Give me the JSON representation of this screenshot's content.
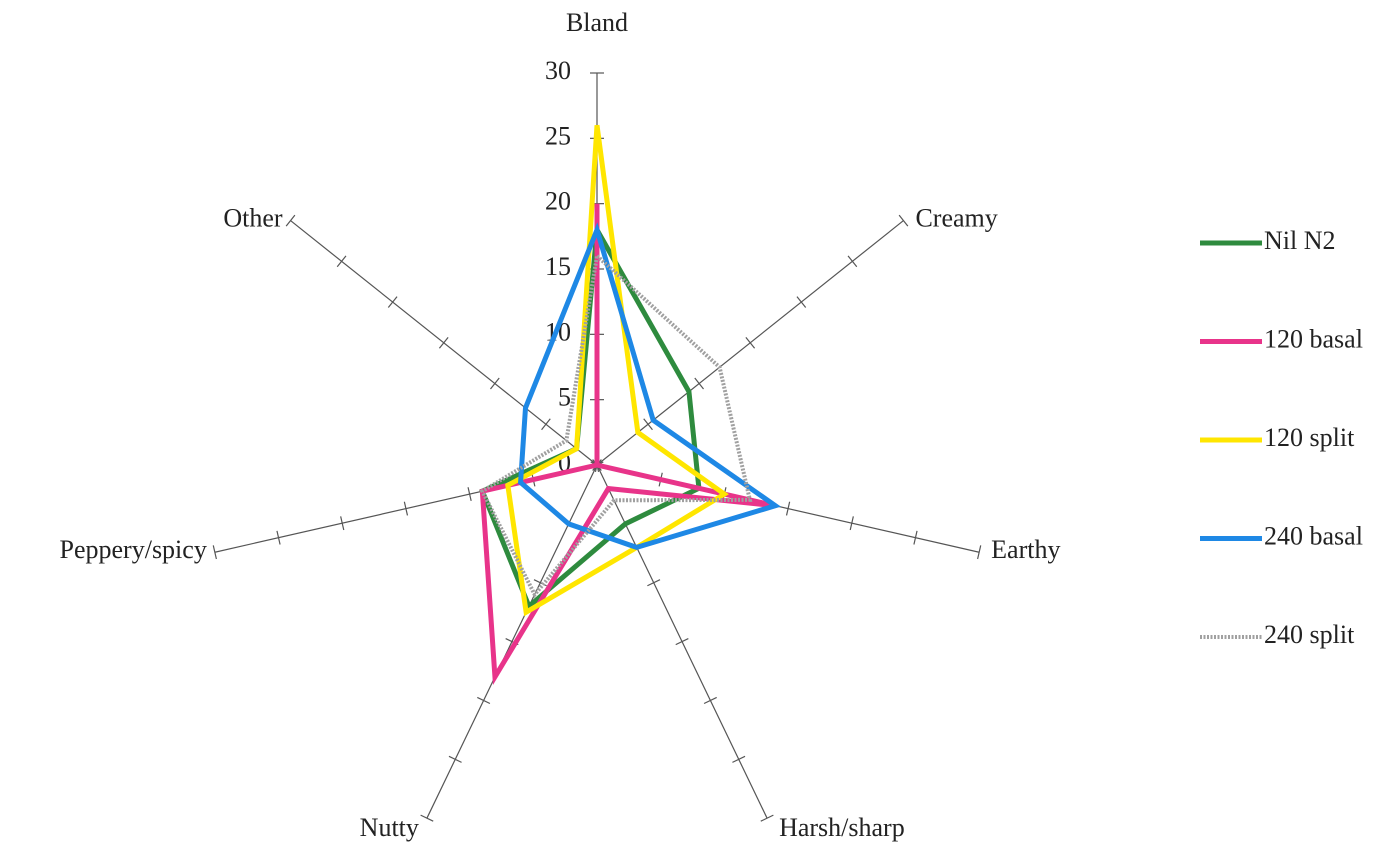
{
  "chart_data": {
    "type": "radar",
    "categories": [
      "Bland",
      "Creamy",
      "Earthy",
      "Harsh/sharp",
      "Nutty",
      "Peppery/spicy",
      "Other"
    ],
    "rlim": [
      0,
      30
    ],
    "rticks": [
      0,
      5,
      10,
      15,
      20,
      25,
      30
    ],
    "legend": "right",
    "series": [
      {
        "name": "Nil N2",
        "color": "#2e8b3e",
        "values": [
          18,
          9,
          8,
          5,
          12,
          9,
          2
        ]
      },
      {
        "name": "120 basal",
        "color": "#e8348a",
        "values": [
          20,
          0,
          14,
          2,
          18,
          9,
          0
        ]
      },
      {
        "name": "120 split",
        "color": "#ffe600",
        "values": [
          26,
          4,
          10,
          7,
          12.5,
          7,
          2
        ]
      },
      {
        "name": "240 basal",
        "color": "#1e88e5",
        "values": [
          18,
          5.5,
          14,
          7,
          5,
          6,
          7
        ]
      },
      {
        "name": "240 split",
        "color": "#a0a0a0",
        "values": [
          16,
          12,
          12,
          3,
          11,
          9,
          3
        ]
      }
    ]
  }
}
